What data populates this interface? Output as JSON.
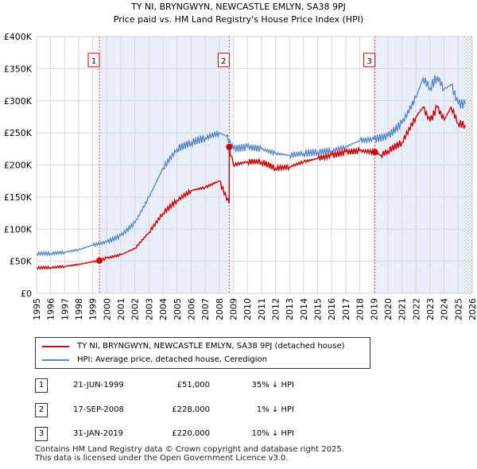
{
  "chart_data": {
    "type": "line",
    "title": "TY NI, BRYNGWYN, NEWCASTLE EMLYN, SA38 9PJ",
    "subtitle": "Price paid vs. HM Land Registry's House Price Index (HPI)",
    "xlim": [
      1995,
      2026
    ],
    "ylim": [
      0,
      400000
    ],
    "x_ticks": [
      1995,
      1996,
      1997,
      1998,
      1999,
      2000,
      2001,
      2002,
      2003,
      2004,
      2005,
      2006,
      2007,
      2008,
      2009,
      2010,
      2011,
      2012,
      2013,
      2014,
      2015,
      2016,
      2017,
      2018,
      2019,
      2020,
      2021,
      2022,
      2023,
      2024,
      2025,
      2026
    ],
    "y_ticks": [
      {
        "value": 0,
        "label": "£0"
      },
      {
        "value": 50000,
        "label": "£50K"
      },
      {
        "value": 100000,
        "label": "£100K"
      },
      {
        "value": 150000,
        "label": "£150K"
      },
      {
        "value": 200000,
        "label": "£200K"
      },
      {
        "value": 250000,
        "label": "£250K"
      },
      {
        "value": 300000,
        "label": "£300K"
      },
      {
        "value": 350000,
        "label": "£350K"
      },
      {
        "value": 400000,
        "label": "£400K"
      }
    ],
    "series": [
      {
        "name": "TY NI, BRYNGWYN, NEWCASTLE EMLYN, SA38 9PJ (detached house)",
        "color": "#cc0000",
        "x": [
          1995,
          1996,
          1997,
          1998,
          1999,
          1999.47,
          2000,
          2001,
          2002,
          2003,
          2004,
          2005,
          2006,
          2007,
          2008,
          2008.7,
          2008.71,
          2009,
          2010,
          2011,
          2012,
          2013,
          2014,
          2015,
          2016,
          2017,
          2018,
          2019.08,
          2019.5,
          2020,
          2021,
          2022,
          2022.5,
          2023,
          2023.5,
          2024,
          2024.5,
          2025,
          2025.5
        ],
        "y": [
          40000,
          40000,
          42000,
          45000,
          49000,
          51000,
          55000,
          60000,
          70000,
          95000,
          125000,
          145000,
          160000,
          165000,
          175000,
          140000,
          228000,
          200000,
          205000,
          205000,
          195000,
          197000,
          205000,
          210000,
          215000,
          220000,
          222000,
          220000,
          215000,
          222000,
          235000,
          275000,
          290000,
          268000,
          290000,
          270000,
          290000,
          265000,
          262000
        ]
      },
      {
        "name": "HPI: Average price, detached house, Ceredigion",
        "color": "#5b8ac6",
        "x": [
          1995,
          1996,
          1997,
          1998,
          1999,
          2000,
          2001,
          2002,
          2003,
          2004,
          2005,
          2006,
          2007,
          2008,
          2008.5,
          2009,
          2010,
          2011,
          2012,
          2013,
          2014,
          2015,
          2016,
          2017,
          2018,
          2019,
          2020,
          2021,
          2022,
          2022.5,
          2023,
          2023.5,
          2024,
          2024.5,
          2025,
          2025.5
        ],
        "y": [
          62000,
          62000,
          64000,
          68000,
          75000,
          80000,
          90000,
          110000,
          150000,
          195000,
          225000,
          235000,
          242000,
          250000,
          245000,
          225000,
          228000,
          225000,
          218000,
          215000,
          218000,
          220000,
          222000,
          228000,
          238000,
          240000,
          245000,
          265000,
          305000,
          335000,
          320000,
          338000,
          318000,
          325000,
          295000,
          295000
        ]
      }
    ],
    "transactions": [
      {
        "num": "1",
        "x": 1999.47,
        "y": 51000,
        "date": "21-JUN-1999",
        "price": "£51,000",
        "hpi": "35% ↓ HPI"
      },
      {
        "num": "2",
        "x": 2008.71,
        "y": 228000,
        "date": "17-SEP-2008",
        "price": "£228,000",
        "hpi": "1% ↓ HPI"
      },
      {
        "num": "3",
        "x": 2019.08,
        "y": 220000,
        "date": "31-JAN-2019",
        "price": "£220,000",
        "hpi": "10% ↓ HPI"
      }
    ],
    "future_start": 2025.45
  },
  "legend": {
    "series1": "TY NI, BRYNGWYN, NEWCASTLE EMLYN, SA38 9PJ (detached house)",
    "series2": "HPI: Average price, detached house, Ceredigion"
  },
  "table": [
    {
      "num": "1",
      "date": "21-JUN-1999",
      "price": "£51,000",
      "hpi": "35% ↓ HPI"
    },
    {
      "num": "2",
      "date": "17-SEP-2008",
      "price": "£228,000",
      "hpi": "1% ↓ HPI"
    },
    {
      "num": "3",
      "date": "31-JAN-2019",
      "price": "£220,000",
      "hpi": "10% ↓ HPI"
    }
  ],
  "footer": {
    "line1": "Contains HM Land Registry data © Crown copyright and database right 2025.",
    "line2": "This data is licensed under the Open Government Licence v3.0."
  },
  "colors": {
    "price": "#cc0000",
    "hpi": "#5b8ac6",
    "band": "#e8eefa",
    "grid": "#d8d8d8"
  }
}
